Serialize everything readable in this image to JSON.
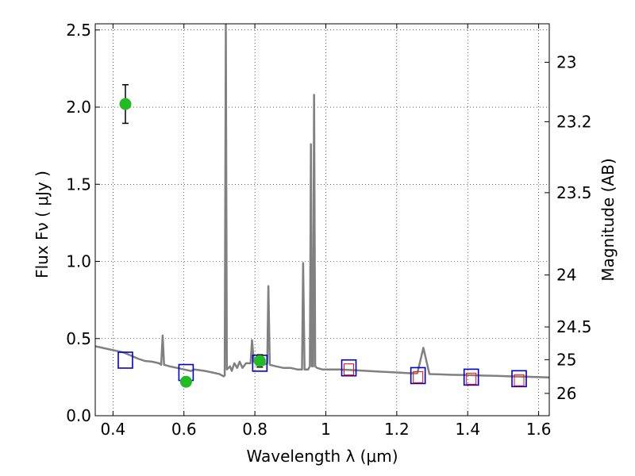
{
  "chart_data": {
    "type": "line",
    "xlabel": "Wavelength  λ (μm)",
    "ylabel": "Flux  Fν  ( μJy )",
    "y2label": "Magnitude (AB)",
    "xlim": [
      0.35,
      1.63
    ],
    "ylim": [
      0.0,
      2.54
    ],
    "x_ticks": [
      0.4,
      0.6,
      0.8,
      1.0,
      1.2,
      1.4,
      1.6
    ],
    "x_tick_labels": [
      "0.4",
      "0.6",
      "0.8",
      "1",
      "1.2",
      "1.4",
      "1.6"
    ],
    "y_ticks": [
      0.0,
      0.5,
      1.0,
      1.5,
      2.0,
      2.5
    ],
    "y_tick_labels": [
      "0.0",
      "0.5",
      "1.0",
      "1.5",
      "2.0",
      "2.5"
    ],
    "y2_ticks": [
      23,
      23.2,
      23.5,
      24,
      24.5,
      25,
      26
    ],
    "y2_tick_labels": [
      "23",
      "23.2",
      "23.5",
      "24",
      "24.5",
      "25",
      "26"
    ],
    "grid": true,
    "colors": {
      "model": "#808080",
      "observed": "#22bb22",
      "model_photometry": "#0000cc",
      "secondary_photometry": "#ff0000",
      "errorbar": "#000000"
    },
    "series": [
      {
        "kind": "spectrum",
        "points": [
          [
            0.35,
            0.45
          ],
          [
            0.37,
            0.44
          ],
          [
            0.39,
            0.43
          ],
          [
            0.41,
            0.42
          ],
          [
            0.43,
            0.41
          ],
          [
            0.45,
            0.39
          ],
          [
            0.47,
            0.37
          ],
          [
            0.49,
            0.355
          ],
          [
            0.51,
            0.35
          ],
          [
            0.53,
            0.34
          ],
          [
            0.536,
            0.33
          ],
          [
            0.54,
            0.52
          ],
          [
            0.544,
            0.33
          ],
          [
            0.56,
            0.32
          ],
          [
            0.58,
            0.31
          ],
          [
            0.6,
            0.3
          ],
          [
            0.62,
            0.29
          ],
          [
            0.63,
            0.3
          ],
          [
            0.645,
            0.295
          ],
          [
            0.66,
            0.29
          ],
          [
            0.68,
            0.28
          ],
          [
            0.7,
            0.27
          ],
          [
            0.712,
            0.255
          ],
          [
            0.715,
            0.26
          ],
          [
            0.718,
            2.54
          ],
          [
            0.721,
            0.3
          ],
          [
            0.73,
            0.32
          ],
          [
            0.735,
            0.29
          ],
          [
            0.742,
            0.34
          ],
          [
            0.75,
            0.31
          ],
          [
            0.757,
            0.35
          ],
          [
            0.765,
            0.31
          ],
          [
            0.775,
            0.34
          ],
          [
            0.788,
            0.34
          ],
          [
            0.792,
            0.49
          ],
          [
            0.797,
            0.35
          ],
          [
            0.81,
            0.33
          ],
          [
            0.825,
            0.33
          ],
          [
            0.835,
            0.34
          ],
          [
            0.838,
            0.84
          ],
          [
            0.842,
            0.33
          ],
          [
            0.86,
            0.32
          ],
          [
            0.88,
            0.31
          ],
          [
            0.9,
            0.31
          ],
          [
            0.92,
            0.3
          ],
          [
            0.933,
            0.3
          ],
          [
            0.936,
            0.99
          ],
          [
            0.94,
            0.3
          ],
          [
            0.95,
            0.3
          ],
          [
            0.955,
            0.32
          ],
          [
            0.958,
            1.76
          ],
          [
            0.961,
            0.32
          ],
          [
            0.964,
            0.32
          ],
          [
            0.967,
            2.08
          ],
          [
            0.97,
            0.32
          ],
          [
            0.975,
            0.31
          ],
          [
            0.99,
            0.3
          ],
          [
            1.01,
            0.3
          ],
          [
            1.04,
            0.3
          ],
          [
            1.08,
            0.295
          ],
          [
            1.12,
            0.29
          ],
          [
            1.16,
            0.285
          ],
          [
            1.2,
            0.28
          ],
          [
            1.24,
            0.275
          ],
          [
            1.258,
            0.275
          ],
          [
            1.275,
            0.44
          ],
          [
            1.292,
            0.27
          ],
          [
            1.32,
            0.268
          ],
          [
            1.36,
            0.265
          ],
          [
            1.4,
            0.263
          ],
          [
            1.44,
            0.26
          ],
          [
            1.48,
            0.258
          ],
          [
            1.52,
            0.255
          ],
          [
            1.56,
            0.253
          ],
          [
            1.6,
            0.25
          ],
          [
            1.63,
            0.248
          ]
        ]
      },
      {
        "kind": "observed",
        "points": [
          {
            "x": 0.435,
            "y": 2.02,
            "err": 0.125
          },
          {
            "x": 0.606,
            "y": 0.22,
            "err": 0.025
          },
          {
            "x": 0.814,
            "y": 0.355,
            "err": 0.04
          }
        ]
      },
      {
        "kind": "model_photometry",
        "points": [
          {
            "x": 0.435,
            "y": 0.36
          },
          {
            "x": 0.606,
            "y": 0.28
          },
          {
            "x": 0.814,
            "y": 0.34
          },
          {
            "x": 1.065,
            "y": 0.31
          },
          {
            "x": 1.26,
            "y": 0.26
          },
          {
            "x": 1.41,
            "y": 0.25
          },
          {
            "x": 1.545,
            "y": 0.24
          }
        ]
      },
      {
        "kind": "secondary_photometry",
        "points": [
          {
            "x": 1.065,
            "y": 0.3
          },
          {
            "x": 1.26,
            "y": 0.25
          },
          {
            "x": 1.41,
            "y": 0.24
          },
          {
            "x": 1.545,
            "y": 0.23
          }
        ]
      }
    ]
  }
}
